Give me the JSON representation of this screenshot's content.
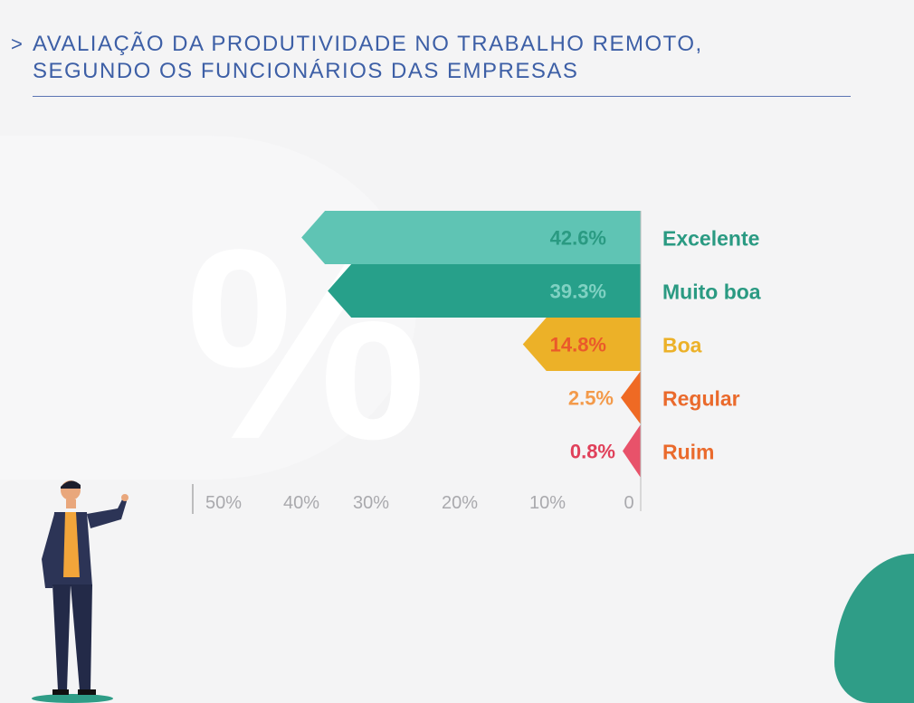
{
  "header": {
    "chevron_icon": "chevron-right-icon",
    "title_line1": "AVALIAÇÃO DA PRODUTIVIDADE NO TRABALHO REMOTO,",
    "title_line2": "SEGUNDO OS FUNCIONÁRIOS DAS EMPRESAS"
  },
  "chart_data": {
    "type": "bar",
    "orientation": "horizontal, growing leftward",
    "categories": [
      "Excelente",
      "Muito boa",
      "Boa",
      "Regular",
      "Ruim"
    ],
    "values": [
      42.6,
      39.3,
      14.8,
      2.5,
      0.8
    ],
    "value_labels": [
      "42.6%",
      "39.3%",
      "14.8%",
      "2.5%",
      "0.8%"
    ],
    "bar_colors": [
      "#5fc4b4",
      "#27a08a",
      "#ecb128",
      "#ef6a24",
      "#e8526a"
    ],
    "label_colors": [
      "#2a9a82",
      "#2a9a82",
      "#ecb128",
      "#ea6a2c",
      "#ea6a2c"
    ],
    "value_label_colors": [
      "#2a9a82",
      "#7fd1c2",
      "#ea5a2a",
      "#f39a4a",
      "#e0405a"
    ],
    "xaxis_ticks": [
      "50%",
      "40%",
      "30%",
      "20%",
      "10%",
      "0"
    ],
    "xlim": [
      0,
      50
    ],
    "grid": false
  }
}
